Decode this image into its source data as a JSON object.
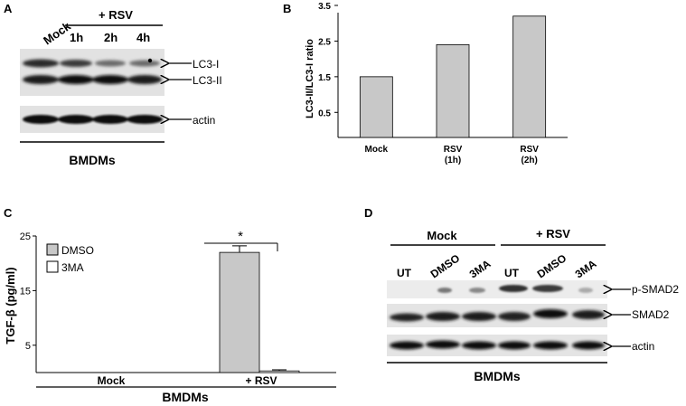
{
  "panel_a": {
    "letter": "A",
    "lane_labels": [
      "Mock",
      "1h",
      "2h",
      "4h"
    ],
    "treatment": "+ RSV",
    "band_labels": [
      "LC3-I",
      "LC3-II",
      "actin"
    ],
    "footer": "BMDMs"
  },
  "panel_b": {
    "letter": "B"
  },
  "panel_c": {
    "letter": "C",
    "significance": "*",
    "footer": "BMDMs"
  },
  "panel_d": {
    "letter": "D",
    "group_labels": [
      "Mock",
      "+ RSV"
    ],
    "lane_labels": [
      "UT",
      "DMSO",
      "3MA",
      "UT",
      "DMSO",
      "3MA"
    ],
    "band_labels": [
      "p-SMAD2",
      "SMAD2",
      "actin"
    ],
    "footer": "BMDMs"
  },
  "chart_data": [
    {
      "type": "bar",
      "panel": "B",
      "title": "",
      "ylabel": "LC3-II/LC3-I ratio",
      "xlabel": "",
      "categories": [
        "Mock",
        "RSV (1h)",
        "RSV (2h)"
      ],
      "category_lines": [
        [
          "Mock"
        ],
        [
          "RSV",
          "(1h)"
        ],
        [
          "RSV",
          "(2h)"
        ]
      ],
      "values": [
        1.5,
        2.4,
        3.2
      ],
      "ylim": [
        0,
        3.5
      ],
      "yticks": [
        0.5,
        1.5,
        2.5,
        3.5
      ],
      "bar_color": "#c8c8c8"
    },
    {
      "type": "bar",
      "panel": "C",
      "title": "",
      "ylabel": "TGF-β (pg/ml)",
      "xlabel": "",
      "categories": [
        "Mock",
        "+ RSV"
      ],
      "series": [
        {
          "name": "DMSO",
          "values": [
            0,
            22
          ],
          "errors": [
            0,
            1.2
          ],
          "color": "#c8c8c8"
        },
        {
          "name": "3MA",
          "values": [
            0,
            0.3
          ],
          "errors": [
            0,
            0.2
          ],
          "color": "#ffffff"
        }
      ],
      "ylim": [
        0,
        25
      ],
      "yticks": [
        5,
        15,
        25
      ],
      "legend_position": "top-left"
    }
  ]
}
